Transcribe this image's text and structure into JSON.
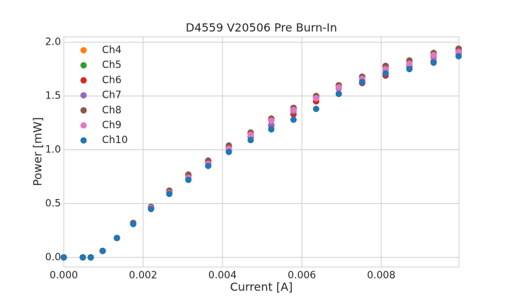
{
  "chart_data": {
    "type": "scatter",
    "title": "D4559 V20506 Pre Burn-In",
    "x_label": "Current [A]",
    "y_label": "Power [mW]",
    "x": [
      0,
      0.00048,
      0.00068,
      0.00098,
      0.00134,
      0.00175,
      0.0022,
      0.00266,
      0.00314,
      0.00364,
      0.00416,
      0.00471,
      0.00523,
      0.00579,
      0.00636,
      0.00693,
      0.00752,
      0.00811,
      0.00871,
      0.00932,
      0.00995
    ],
    "series": [
      {
        "name": "Ch4",
        "color": "#ff7f0e",
        "values": [
          0,
          0,
          0,
          0.06,
          0.18,
          0.32,
          0.47,
          0.62,
          0.76,
          0.89,
          1.03,
          1.16,
          1.29,
          1.39,
          1.5,
          1.6,
          1.68,
          1.78,
          1.83,
          1.9,
          1.94
        ]
      },
      {
        "name": "Ch5",
        "color": "#2ca02c",
        "values": [
          0,
          0,
          0,
          0.06,
          0.18,
          0.32,
          0.47,
          0.61,
          0.76,
          0.89,
          1.03,
          1.15,
          1.28,
          1.38,
          1.49,
          1.59,
          1.67,
          1.77,
          1.82,
          1.89,
          1.93
        ]
      },
      {
        "name": "Ch6",
        "color": "#d62728",
        "values": [
          0,
          0,
          0,
          0.06,
          0.18,
          0.31,
          0.46,
          0.6,
          0.74,
          0.88,
          1.01,
          1.12,
          1.23,
          1.33,
          1.45,
          1.52,
          1.62,
          1.69,
          1.77,
          1.82,
          1.9
        ]
      },
      {
        "name": "Ch7",
        "color": "#9467bd",
        "values": [
          0,
          0,
          0,
          0.06,
          0.18,
          0.31,
          0.45,
          0.6,
          0.73,
          0.86,
          0.99,
          1.12,
          1.22,
          1.36,
          1.48,
          1.57,
          1.65,
          1.74,
          1.79,
          1.86,
          1.92
        ]
      },
      {
        "name": "Ch8",
        "color": "#8c564b",
        "values": [
          0,
          0,
          0,
          0.06,
          0.18,
          0.32,
          0.47,
          0.62,
          0.77,
          0.9,
          1.04,
          1.16,
          1.29,
          1.39,
          1.5,
          1.6,
          1.68,
          1.78,
          1.83,
          1.9,
          1.94
        ]
      },
      {
        "name": "Ch9",
        "color": "#e377c2",
        "values": [
          0,
          0,
          0,
          0.06,
          0.18,
          0.31,
          0.46,
          0.6,
          0.74,
          0.87,
          1.01,
          1.14,
          1.27,
          1.37,
          1.48,
          1.58,
          1.66,
          1.75,
          1.8,
          1.88,
          1.91
        ]
      },
      {
        "name": "Ch10",
        "color": "#1f77b4",
        "values": [
          0,
          0,
          0,
          0.06,
          0.18,
          0.31,
          0.45,
          0.59,
          0.72,
          0.85,
          0.98,
          1.09,
          1.19,
          1.28,
          1.38,
          1.52,
          1.63,
          1.71,
          1.75,
          1.81,
          1.87
        ]
      }
    ],
    "xlim": [
      0,
      0.00996
    ],
    "ylim": [
      -0.09,
      2.05
    ],
    "xticks": [
      {
        "value": 0,
        "label": "0.000"
      },
      {
        "value": 0.002,
        "label": "0.002"
      },
      {
        "value": 0.004,
        "label": "0.004"
      },
      {
        "value": 0.006,
        "label": "0.006"
      },
      {
        "value": 0.008,
        "label": "0.008"
      }
    ],
    "yticks": [
      {
        "value": 0,
        "label": "0.0"
      },
      0.5,
      {
        "value": 1,
        "label": "1.0"
      },
      1.5,
      {
        "value": 2,
        "label": "2.0"
      }
    ],
    "grid": true,
    "legend": "upper left"
  }
}
